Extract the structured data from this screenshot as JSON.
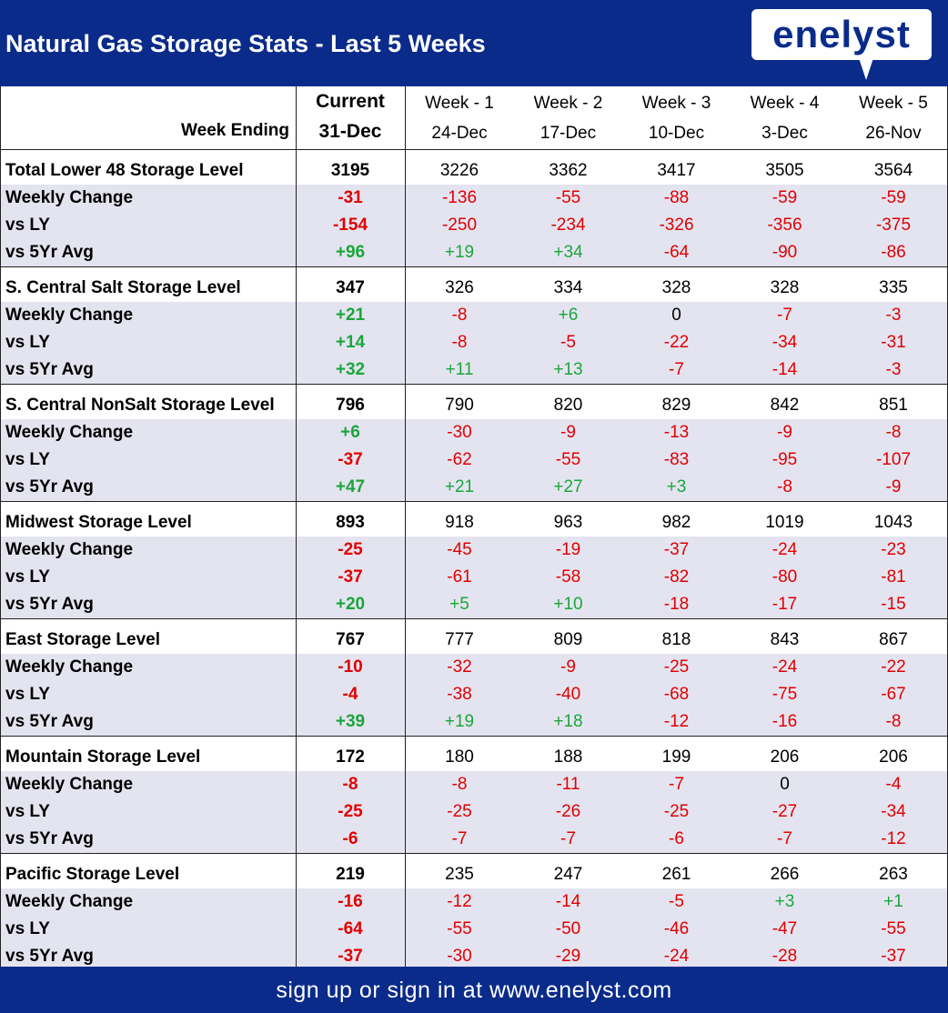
{
  "title": "Natural Gas Storage Stats - Last 5 Weeks",
  "logo": "enelyst",
  "footer": "sign up or sign in at www.enelyst.com",
  "colors": {
    "brand": "#0a2b8a",
    "negative": "#e00000",
    "positive": "#1aa63a",
    "neutral": "#000000",
    "band": "#e4e4f0"
  },
  "table": {
    "week_ending_label": "Week Ending",
    "columns": [
      {
        "top": "Current",
        "date": "31-Dec"
      },
      {
        "top": "Week - 1",
        "date": "24-Dec"
      },
      {
        "top": "Week - 2",
        "date": "17-Dec"
      },
      {
        "top": "Week - 3",
        "date": "10-Dec"
      },
      {
        "top": "Week - 4",
        "date": "3-Dec"
      },
      {
        "top": "Week - 5",
        "date": "26-Nov"
      }
    ],
    "groups": [
      {
        "name": "Total Lower 48 Storage Level",
        "rows": [
          {
            "label": "Total Lower 48 Storage Level",
            "values": [
              "3195",
              "3226",
              "3362",
              "3417",
              "3505",
              "3564"
            ]
          },
          {
            "label": "Weekly Change",
            "values": [
              "-31",
              "-136",
              "-55",
              "-88",
              "-59",
              "-59"
            ]
          },
          {
            "label": "vs LY",
            "values": [
              "-154",
              "-250",
              "-234",
              "-326",
              "-356",
              "-375"
            ]
          },
          {
            "label": "vs 5Yr Avg",
            "values": [
              "+96",
              "+19",
              "+34",
              "-64",
              "-90",
              "-86"
            ]
          }
        ]
      },
      {
        "name": "S. Central Salt Storage Level",
        "rows": [
          {
            "label": "S. Central Salt Storage Level",
            "values": [
              "347",
              "326",
              "334",
              "328",
              "328",
              "335"
            ]
          },
          {
            "label": "Weekly Change",
            "values": [
              "+21",
              "-8",
              "+6",
              "0",
              "-7",
              "-3"
            ]
          },
          {
            "label": "vs LY",
            "values": [
              "+14",
              "-8",
              "-5",
              "-22",
              "-34",
              "-31"
            ]
          },
          {
            "label": "vs 5Yr Avg",
            "values": [
              "+32",
              "+11",
              "+13",
              "-7",
              "-14",
              "-3"
            ]
          }
        ]
      },
      {
        "name": "S. Central NonSalt Storage Level",
        "rows": [
          {
            "label": "S. Central NonSalt Storage Level",
            "values": [
              "796",
              "790",
              "820",
              "829",
              "842",
              "851"
            ]
          },
          {
            "label": "Weekly Change",
            "values": [
              "+6",
              "-30",
              "-9",
              "-13",
              "-9",
              "-8"
            ]
          },
          {
            "label": "vs LY",
            "values": [
              "-37",
              "-62",
              "-55",
              "-83",
              "-95",
              "-107"
            ]
          },
          {
            "label": "vs 5Yr Avg",
            "values": [
              "+47",
              "+21",
              "+27",
              "+3",
              "-8",
              "-9"
            ]
          }
        ]
      },
      {
        "name": "Midwest Storage Level",
        "rows": [
          {
            "label": "Midwest Storage Level",
            "values": [
              "893",
              "918",
              "963",
              "982",
              "1019",
              "1043"
            ]
          },
          {
            "label": "Weekly Change",
            "values": [
              "-25",
              "-45",
              "-19",
              "-37",
              "-24",
              "-23"
            ]
          },
          {
            "label": "vs LY",
            "values": [
              "-37",
              "-61",
              "-58",
              "-82",
              "-80",
              "-81"
            ]
          },
          {
            "label": "vs 5Yr Avg",
            "values": [
              "+20",
              "+5",
              "+10",
              "-18",
              "-17",
              "-15"
            ]
          }
        ]
      },
      {
        "name": "East Storage Level",
        "rows": [
          {
            "label": "East Storage Level",
            "values": [
              "767",
              "777",
              "809",
              "818",
              "843",
              "867"
            ]
          },
          {
            "label": "Weekly Change",
            "values": [
              "-10",
              "-32",
              "-9",
              "-25",
              "-24",
              "-22"
            ]
          },
          {
            "label": "vs LY",
            "values": [
              "-4",
              "-38",
              "-40",
              "-68",
              "-75",
              "-67"
            ]
          },
          {
            "label": "vs 5Yr Avg",
            "values": [
              "+39",
              "+19",
              "+18",
              "-12",
              "-16",
              "-8"
            ]
          }
        ]
      },
      {
        "name": "Mountain Storage Level",
        "rows": [
          {
            "label": "Mountain Storage Level",
            "values": [
              "172",
              "180",
              "188",
              "199",
              "206",
              "206"
            ]
          },
          {
            "label": "Weekly Change",
            "values": [
              "-8",
              "-8",
              "-11",
              "-7",
              "0",
              "-4"
            ]
          },
          {
            "label": "vs LY",
            "values": [
              "-25",
              "-25",
              "-26",
              "-25",
              "-27",
              "-34"
            ]
          },
          {
            "label": "vs 5Yr Avg",
            "values": [
              "-6",
              "-7",
              "-7",
              "-6",
              "-7",
              "-12"
            ]
          }
        ]
      },
      {
        "name": "Pacific Storage Level",
        "rows": [
          {
            "label": "Pacific Storage Level",
            "values": [
              "219",
              "235",
              "247",
              "261",
              "266",
              "263"
            ]
          },
          {
            "label": "Weekly Change",
            "values": [
              "-16",
              "-12",
              "-14",
              "-5",
              "+3",
              "+1"
            ]
          },
          {
            "label": "vs LY",
            "values": [
              "-64",
              "-55",
              "-50",
              "-46",
              "-47",
              "-55"
            ]
          },
          {
            "label": "vs 5Yr Avg",
            "values": [
              "-37",
              "-30",
              "-29",
              "-24",
              "-28",
              "-37"
            ]
          }
        ]
      }
    ]
  }
}
